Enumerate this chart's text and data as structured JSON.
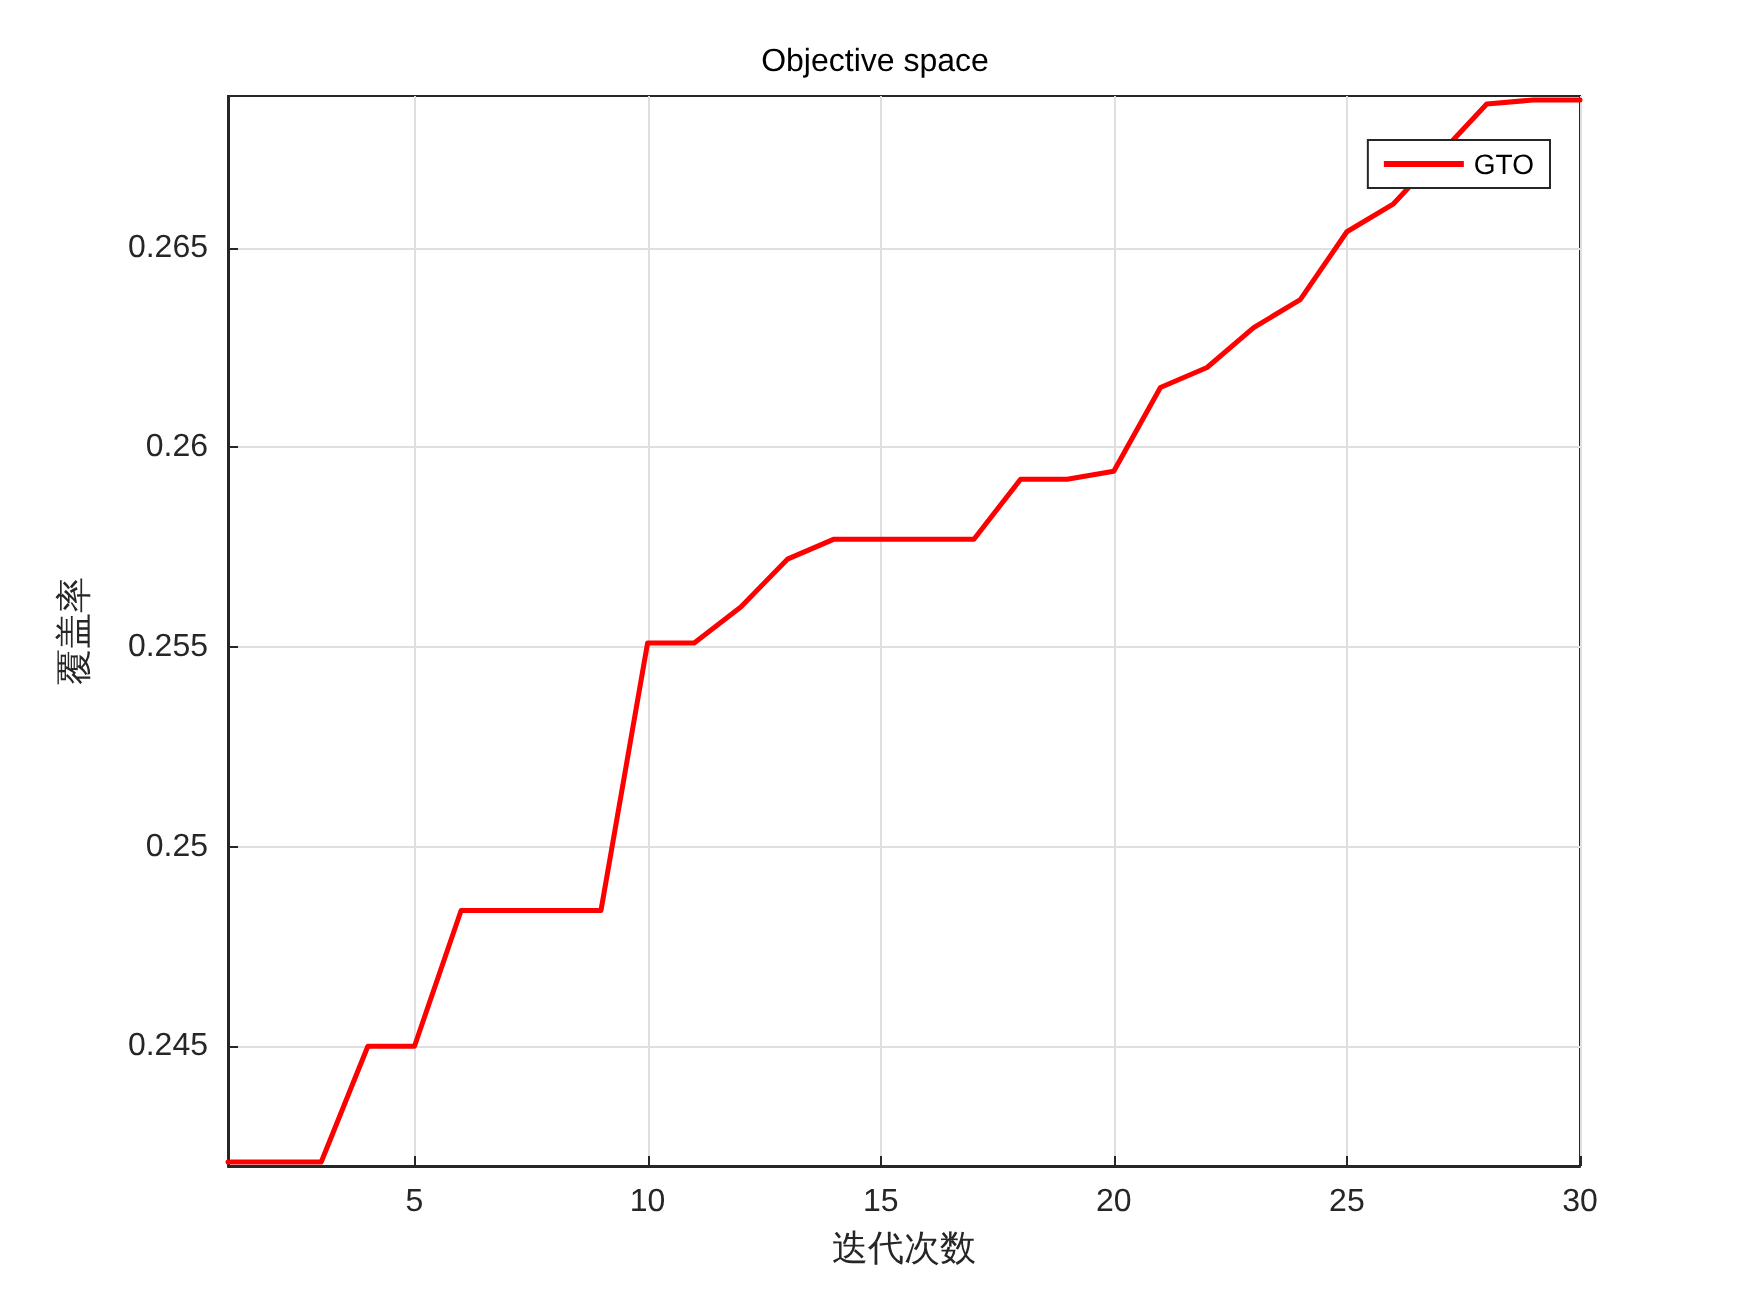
{
  "chart_data": {
    "type": "line",
    "title": "Objective space",
    "xlabel": "迭代次数",
    "ylabel": "覆盖率",
    "x": [
      1,
      2,
      3,
      4,
      5,
      6,
      7,
      8,
      9,
      10,
      11,
      12,
      13,
      14,
      15,
      16,
      17,
      18,
      19,
      20,
      21,
      22,
      23,
      24,
      25,
      26,
      27,
      28,
      29,
      30
    ],
    "series": [
      {
        "name": "GTO",
        "color": "#ff0000",
        "values": [
          0.2421,
          0.2421,
          0.2421,
          0.245,
          0.245,
          0.2484,
          0.2484,
          0.2484,
          0.2484,
          0.2551,
          0.2551,
          0.256,
          0.2572,
          0.2577,
          0.2577,
          0.2577,
          0.2577,
          0.2592,
          0.2592,
          0.2594,
          0.2615,
          0.262,
          0.263,
          0.2637,
          0.2654,
          0.2661,
          null,
          0.2686,
          0.2687,
          0.2687
        ]
      }
    ],
    "xlim": [
      1,
      30
    ],
    "xticks": [
      5,
      10,
      15,
      20,
      25,
      30
    ],
    "ylim": [
      0.242,
      0.2688
    ],
    "yticks": [
      0.245,
      0.25,
      0.255,
      0.26,
      0.265
    ],
    "grid": true,
    "legend": "top right",
    "marker": "none",
    "line_style": "solid"
  }
}
